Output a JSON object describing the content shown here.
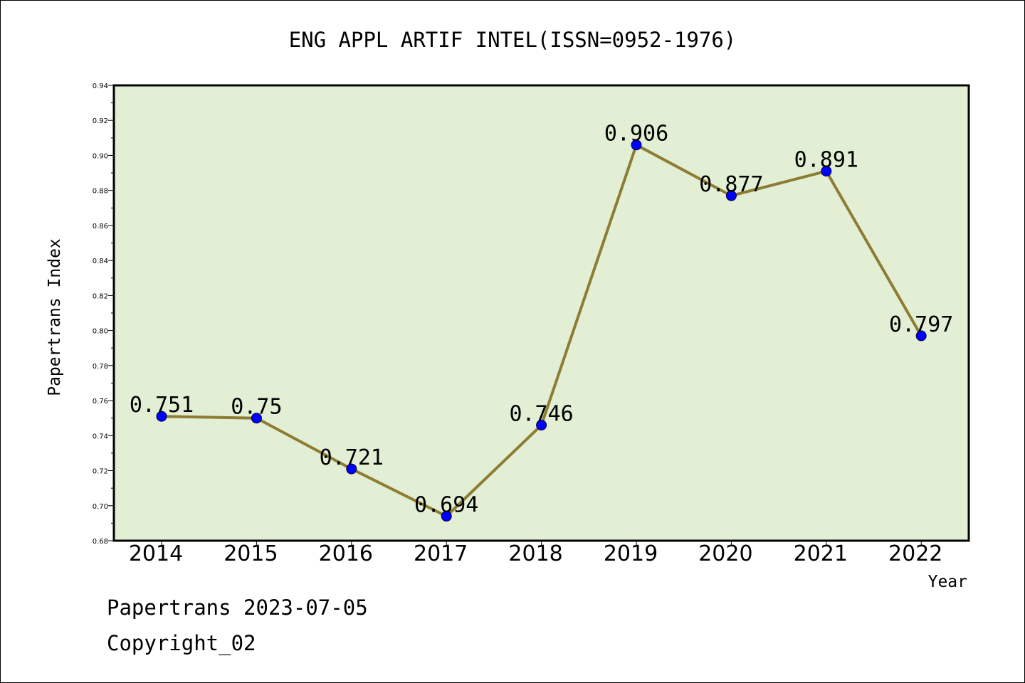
{
  "chart_data": {
    "type": "line",
    "title": "ENG APPL ARTIF INTEL(ISSN=0952-1976)",
    "xlabel": "Year",
    "ylabel": "Papertrans Index",
    "categories": [
      "2014",
      "2015",
      "2016",
      "2017",
      "2018",
      "2019",
      "2020",
      "2021",
      "2022"
    ],
    "series": [
      {
        "values": [
          0.751,
          0.75,
          0.721,
          0.694,
          0.746,
          0.906,
          0.877,
          0.891,
          0.797
        ]
      }
    ],
    "data_labels": [
      "0.751",
      "0.75",
      "0.721",
      "0.694",
      "0.746",
      "0.906",
      "0.877",
      "0.891",
      "0.797"
    ],
    "ylim": [
      0.68,
      0.94
    ],
    "yticks": [
      "0.68",
      "0.70",
      "0.72",
      "0.74",
      "0.76",
      "0.78",
      "0.80",
      "0.82",
      "0.84",
      "0.86",
      "0.88",
      "0.90",
      "0.92",
      "0.94"
    ],
    "grid": false,
    "legend": "none",
    "colors": {
      "plot_background": "#e2efd5",
      "line": "#8c7d33",
      "marker": "#0000ff"
    }
  },
  "footer": {
    "line1": "Papertrans 2023-07-05",
    "line2": "Copyright_02"
  }
}
